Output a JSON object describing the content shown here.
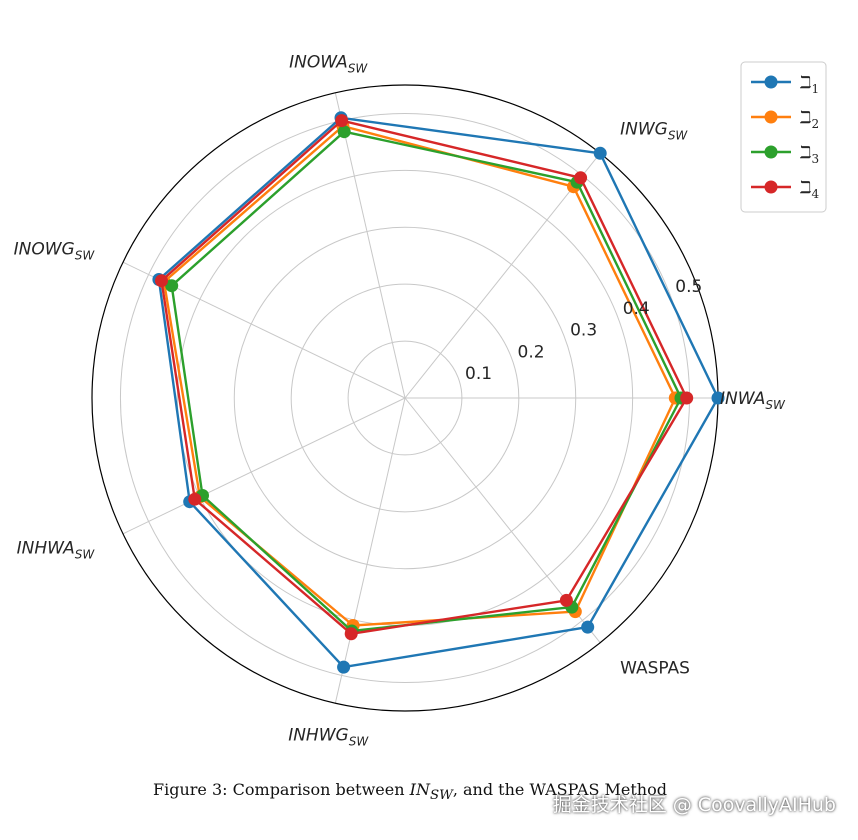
{
  "chart_data": {
    "type": "radar",
    "axes": [
      {
        "main": "INWA",
        "sub": "SW",
        "italic": true
      },
      {
        "main": "INWG",
        "sub": "SW",
        "italic": true
      },
      {
        "main": "INOWA",
        "sub": "SW",
        "italic": true
      },
      {
        "main": "INOWG",
        "sub": "SW",
        "italic": true
      },
      {
        "main": "INHWA",
        "sub": "SW",
        "italic": true
      },
      {
        "main": "INHWG",
        "sub": "SW",
        "italic": true
      },
      {
        "main": "WASPAS",
        "sub": "",
        "italic": false
      }
    ],
    "radial_ticks": [
      "0.1",
      "0.2",
      "0.3",
      "0.4",
      "0.5"
    ],
    "rlim": [
      0,
      0.55
    ],
    "grid": true,
    "legend_position": "top-right",
    "series": [
      {
        "name": "ℶ",
        "sub": "1",
        "color": "#1f77b4",
        "values": [
          0.55,
          0.55,
          0.505,
          0.48,
          0.42,
          0.485,
          0.515
        ]
      },
      {
        "name": "ℶ",
        "sub": "2",
        "color": "#ff7f0e",
        "values": [
          0.475,
          0.475,
          0.49,
          0.47,
          0.4,
          0.41,
          0.48
        ]
      },
      {
        "name": "ℶ",
        "sub": "3",
        "color": "#2ca02c",
        "values": [
          0.485,
          0.485,
          0.48,
          0.455,
          0.395,
          0.42,
          0.47
        ]
      },
      {
        "name": "ℶ",
        "sub": "4",
        "color": "#d62728",
        "values": [
          0.495,
          0.495,
          0.5,
          0.475,
          0.41,
          0.425,
          0.455
        ]
      }
    ]
  },
  "caption": {
    "prefix": "Figure 3: Comparison between ",
    "math_main": "IN",
    "math_sub": "SW",
    "suffix": ", and the WASPAS Method"
  },
  "watermark": "掘金技术社区 @ CoovallyAIHub"
}
